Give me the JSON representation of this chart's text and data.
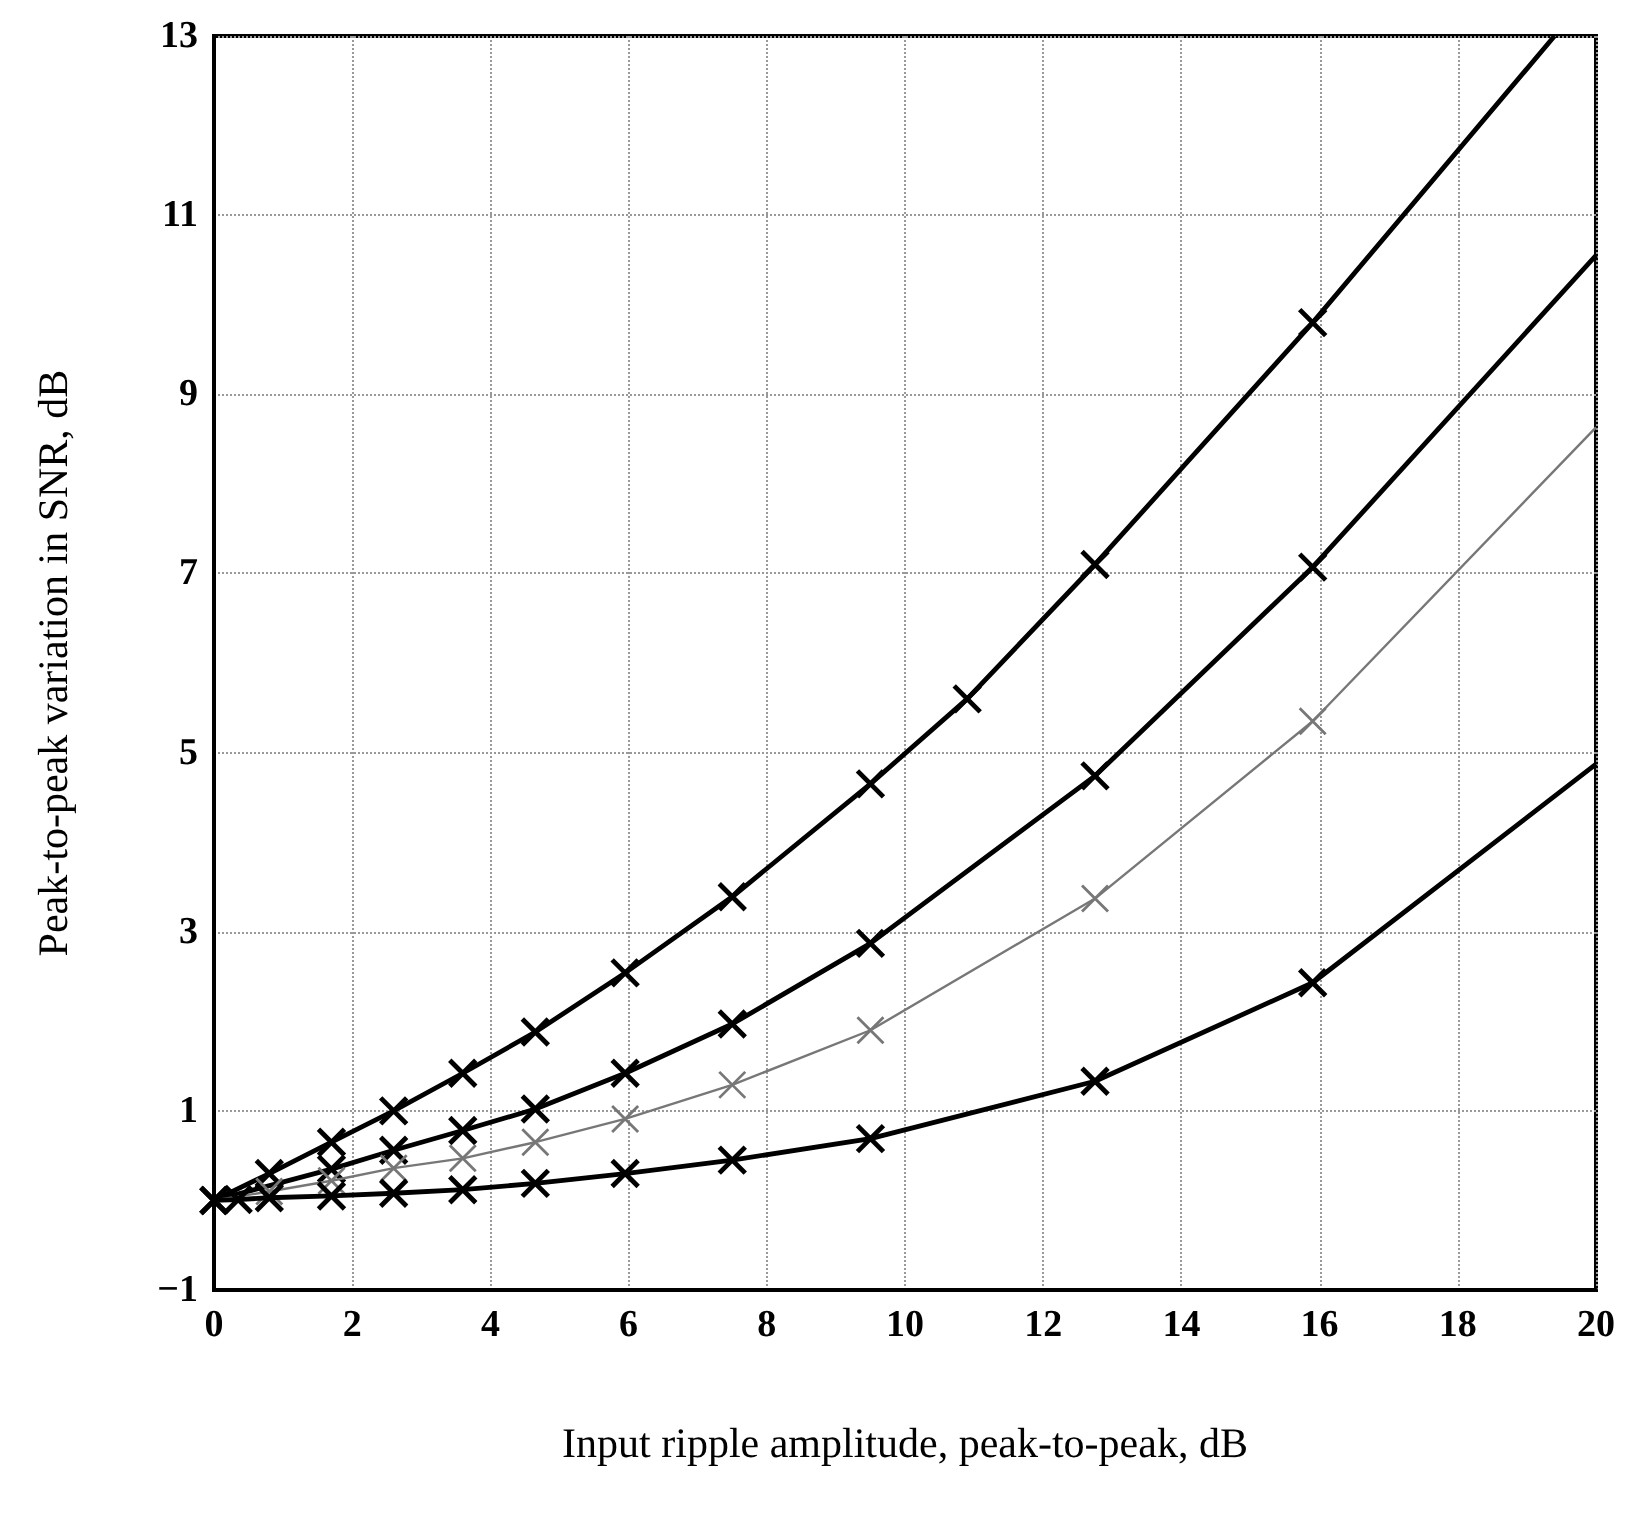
{
  "chart_data": {
    "type": "line",
    "xlabel": "Input ripple amplitude, peak-to-peak, dB",
    "ylabel": "Peak-to-peak variation in SNR, dB",
    "xlim": [
      0,
      20
    ],
    "xticks": [
      0,
      2,
      4,
      6,
      8,
      10,
      12,
      14,
      16,
      18,
      20
    ],
    "ylim": [
      -1,
      13
    ],
    "yticks": [
      -1,
      1,
      3,
      5,
      7,
      9,
      11,
      13
    ],
    "grid": true,
    "marker": "cross",
    "line_style": "solid",
    "series": [
      {
        "color": "#000000",
        "x": [
          0,
          0.35,
          0.8,
          1.7,
          2.6,
          3.6,
          4.65,
          5.95,
          7.5,
          9.5,
          10.9,
          12.75,
          15.9,
          19.4
        ],
        "values": [
          0,
          null,
          0.3,
          0.65,
          1.0,
          1.42,
          1.88,
          2.54,
          3.39,
          4.65,
          5.6,
          7.1,
          9.8,
          13
        ]
      },
      {
        "color": "#000000",
        "x": [
          0,
          0.35,
          0.8,
          1.7,
          2.6,
          3.6,
          4.65,
          5.95,
          7.5,
          9.5,
          12.75,
          15.9,
          20
        ],
        "values": [
          0,
          null,
          null,
          0.35,
          0.56,
          0.78,
          1.02,
          1.42,
          1.97,
          2.87,
          4.74,
          7.07,
          10.55
        ]
      },
      {
        "color": "#777777",
        "x": [
          0,
          0.35,
          0.8,
          1.7,
          2.6,
          3.6,
          4.65,
          5.95,
          7.5,
          9.5,
          12.75,
          15.9,
          20
        ],
        "values": [
          0,
          null,
          0.1,
          0.22,
          0.36,
          0.47,
          0.65,
          0.91,
          1.29,
          1.9,
          3.37,
          5.35,
          8.63
        ]
      },
      {
        "color": "#000000",
        "x": [
          0,
          0.35,
          0.8,
          1.7,
          2.6,
          3.6,
          4.65,
          5.95,
          7.5,
          9.5,
          12.75,
          15.9,
          20
        ],
        "values": [
          0,
          0.01,
          0.03,
          0.05,
          0.08,
          0.12,
          0.19,
          0.3,
          0.45,
          0.69,
          1.33,
          2.43,
          4.87
        ]
      }
    ]
  }
}
